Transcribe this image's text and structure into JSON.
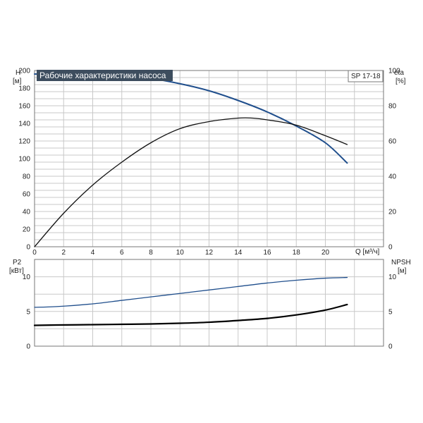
{
  "header": {
    "title": "Рабочие характеристики насоса",
    "model": "SP 17-18",
    "title_bg": "#3d4d5e"
  },
  "upper": {
    "left_label": "H",
    "left_unit": "[м]",
    "right_label": "eta",
    "right_unit": "[%]",
    "x_label": "Q [м³/ч]",
    "x_ticks": [
      "0",
      "2",
      "4",
      "6",
      "8",
      "10",
      "12",
      "14",
      "16",
      "18",
      "20"
    ],
    "left_ticks": [
      "0",
      "20",
      "40",
      "60",
      "80",
      "100",
      "120",
      "140",
      "160",
      "180",
      "200"
    ],
    "right_ticks": [
      "0",
      "20",
      "40",
      "60",
      "80",
      "100"
    ]
  },
  "lower": {
    "left_label": "P2",
    "left_unit": "[кВт]",
    "right_label": "NPSH",
    "right_unit": "[м]",
    "left_ticks": [
      "0",
      "5",
      "10"
    ],
    "right_ticks": [
      "0",
      "5",
      "10"
    ]
  },
  "colors": {
    "head": "#1f4e8c",
    "eta": "#111111",
    "p2": "#1f4e8c",
    "npsh": "#000000"
  },
  "chart_data": [
    {
      "type": "line",
      "xlabel": "Q [м³/ч]",
      "ylabel": "H [м]",
      "y2label": "eta [%]",
      "xlim": [
        0,
        24
      ],
      "ylim": [
        0,
        200
      ],
      "y2lim": [
        0,
        100
      ],
      "grid": true,
      "series": [
        {
          "key": "head",
          "axis": "left",
          "x": [
            0,
            1.5,
            4,
            6,
            8,
            10,
            12,
            14,
            16,
            18,
            20,
            21.5
          ],
          "y": [
            196,
            196,
            196,
            194,
            191,
            185,
            177,
            166,
            153,
            137,
            118,
            95
          ]
        },
        {
          "key": "eta",
          "axis": "right",
          "x": [
            0,
            2,
            4,
            6,
            8,
            10,
            12,
            14,
            15,
            16,
            18,
            20,
            21.5
          ],
          "y": [
            0,
            19,
            35,
            48,
            59,
            67,
            71,
            73,
            73,
            72,
            69,
            63,
            58
          ]
        }
      ]
    },
    {
      "type": "line",
      "xlabel": "Q [м³/ч]",
      "ylabel": "P2 [кВт]",
      "y2label": "NPSH [м]",
      "xlim": [
        0,
        24
      ],
      "ylim": [
        0,
        12.5
      ],
      "y2lim": [
        0,
        12.5
      ],
      "grid": true,
      "series": [
        {
          "key": "p2",
          "axis": "left",
          "x": [
            0,
            1.5,
            4,
            6,
            8,
            10,
            12,
            14,
            16,
            18,
            20,
            21.5
          ],
          "y": [
            5.6,
            5.7,
            6.1,
            6.6,
            7.1,
            7.6,
            8.1,
            8.6,
            9.1,
            9.5,
            9.8,
            9.9
          ]
        },
        {
          "key": "npsh",
          "axis": "right",
          "x": [
            0,
            1.5,
            4,
            6,
            8,
            10,
            12,
            14,
            16,
            18,
            20,
            21.5
          ],
          "y": [
            3.0,
            3.05,
            3.1,
            3.15,
            3.2,
            3.3,
            3.45,
            3.7,
            4.0,
            4.5,
            5.2,
            6.0
          ]
        }
      ]
    }
  ]
}
